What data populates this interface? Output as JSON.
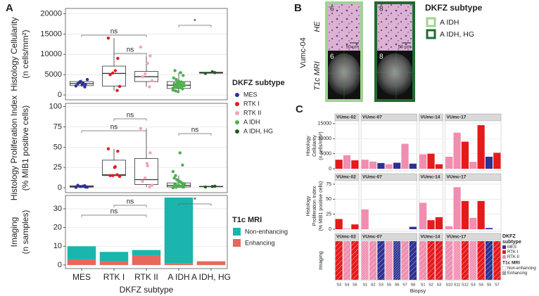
{
  "panels": [
    "A",
    "B",
    "C"
  ],
  "panel_b": {
    "patient": "Vumc-04",
    "rows": [
      "HE",
      "T1c MRI"
    ],
    "biopsies": [
      "6",
      "8"
    ],
    "scale_bar": "50 µm",
    "legend": {
      "title": "DKFZ subtype",
      "entries": [
        "A IDH",
        "A IDH, HG"
      ],
      "colors": [
        "#9fd48f",
        "#1f6b2f"
      ]
    }
  },
  "chart_data": [
    {
      "type": "box",
      "ylabel": [
        "Histology Cellularity",
        "(n cells/mm²)"
      ],
      "categories": [
        "MES",
        "RTK I",
        "RTK II",
        "A IDH",
        "A IDH, HG"
      ],
      "colors": [
        "#2e3192",
        "#e41a1c",
        "#f5a3b8",
        "#4caf50",
        "#1b5e20"
      ],
      "ylim": [
        -1200,
        21300
      ],
      "yticks": [
        0,
        5000,
        10000,
        15000,
        20000
      ],
      "grid": true,
      "boxes": [
        {
          "whislo": 2000,
          "q1": 2300,
          "med": 2800,
          "q3": 3300,
          "whishi": 3800
        },
        {
          "whislo": 1100,
          "q1": 2200,
          "med": 5300,
          "q3": 7100,
          "whishi": 14000
        },
        {
          "whislo": 2000,
          "q1": 3300,
          "med": 4500,
          "q3": 5800,
          "whishi": 9600
        },
        {
          "whislo": 800,
          "q1": 1600,
          "med": 2400,
          "q3": 3300,
          "whishi": 5500
        },
        {
          "whislo": 5300,
          "q1": 5350,
          "med": 5500,
          "q3": 5600,
          "whishi": 5700
        }
      ],
      "points": [
        [
          2200,
          2600,
          3000,
          3300,
          2800,
          3800,
          2000,
          2500,
          3200
        ],
        [
          14000,
          9000,
          6000,
          5400,
          5000,
          2100,
          1100
        ],
        [
          11800,
          9600,
          7800,
          5200,
          4500,
          3500,
          2000
        ],
        [
          1200,
          1500,
          1800,
          2000,
          2100,
          2300,
          2400,
          2500,
          2600,
          2800,
          3000,
          3200,
          3400,
          3800,
          4200,
          4800,
          5500,
          800,
          1000,
          1700,
          2200,
          2700,
          3100,
          6000
        ],
        [
          5300,
          5500,
          5700
        ]
      ],
      "brackets": [
        {
          "label": "ns",
          "between": [
            "MES",
            "RTK II"
          ]
        },
        {
          "label": "ns",
          "between": [
            "RTK I",
            "RTK II"
          ]
        },
        {
          "label": "*",
          "between": [
            "A IDH",
            "A IDH, HG"
          ]
        }
      ],
      "legend_title": "DKFZ subtype"
    },
    {
      "type": "box",
      "ylabel": [
        "Histology Proliferation Index",
        "(% MIB1 positive cells)"
      ],
      "categories": [
        "MES",
        "RTK I",
        "RTK II",
        "A IDH",
        "A IDH, HG"
      ],
      "colors": [
        "#2e3192",
        "#e41a1c",
        "#f5a3b8",
        "#4caf50",
        "#1b5e20"
      ],
      "ylim": [
        -6,
        104
      ],
      "yticks": [
        0,
        25,
        50,
        75,
        100
      ],
      "grid": true,
      "boxes": [
        {
          "whislo": 0,
          "q1": 0.8,
          "med": 1.5,
          "q3": 2.5,
          "whishi": 3
        },
        {
          "whislo": 14,
          "q1": 15,
          "med": 16,
          "q3": 34,
          "whishi": 48
        },
        {
          "whislo": 1,
          "q1": 4,
          "med": 10,
          "q3": 36,
          "whishi": 73
        },
        {
          "whislo": 0,
          "q1": 1,
          "med": 3,
          "q3": 6,
          "whishi": 15
        },
        {
          "whislo": 1,
          "q1": 1.2,
          "med": 1.5,
          "q3": 1.8,
          "whishi": 2
        }
      ],
      "points": [
        [
          0.5,
          1,
          2,
          1.5,
          3,
          0.8,
          2.5
        ],
        [
          48,
          45,
          26,
          15,
          15,
          14,
          16,
          25
        ],
        [
          73,
          43,
          27,
          12,
          8,
          3,
          1,
          30
        ],
        [
          0,
          1,
          2,
          3,
          4,
          5,
          6,
          8,
          10,
          12,
          1,
          2,
          3,
          0.5,
          2,
          4,
          7,
          9,
          15,
          20,
          28,
          43
        ],
        [
          1,
          2,
          1.5
        ]
      ],
      "brackets": [
        {
          "label": "ns",
          "between": [
            "MES",
            "RTK II"
          ]
        },
        {
          "label": "ns",
          "between": [
            "RTK I",
            "RTK II"
          ]
        },
        {
          "label": "ns",
          "between": [
            "A IDH",
            "A IDH, HG"
          ]
        }
      ]
    },
    {
      "type": "stacked_bar",
      "ylabel": [
        "Imaging",
        "(n samples)"
      ],
      "xlabel": "DKFZ subtype",
      "categories": [
        "MES",
        "RTK I",
        "RTK II",
        "A IDH",
        "A IDH, HG"
      ],
      "ylim": [
        -1.9,
        37.1
      ],
      "yticks": [
        0,
        10,
        20,
        30
      ],
      "grid": true,
      "series": [
        {
          "name": "Non-enhancing",
          "color": "#1ab5ac",
          "values": [
            7,
            5,
            3,
            35,
            0
          ]
        },
        {
          "name": "Enhancing",
          "color": "#e8675d",
          "values": [
            3,
            2,
            5,
            1,
            2
          ]
        }
      ],
      "brackets": [
        {
          "label": "ns",
          "between": [
            "MES",
            "RTK II"
          ]
        },
        {
          "label": "ns",
          "between": [
            "RTK I",
            "RTK II"
          ]
        },
        {
          "label": "*",
          "between": [
            "A IDH",
            "A IDH, HG"
          ]
        }
      ],
      "legend_title": "T1c MRI"
    },
    {
      "type": "facet_bar",
      "ylabel": [
        "Histology",
        "Cellularity",
        "(n cells/mm²)"
      ],
      "ylim": [
        -700,
        15900
      ],
      "yticks": [
        0,
        5000,
        10000,
        15000
      ],
      "grid": true,
      "facets": [
        {
          "name": "VUmc-02",
          "subtypes": [
            "RTK I",
            "RTK II",
            "RTK I"
          ],
          "values": [
            3000,
            4500,
            2800
          ]
        },
        {
          "name": "VUmc-07",
          "subtypes": [
            "RTK II",
            "RTK II",
            "MES",
            "RTK II",
            "MES",
            "RTK II",
            "MES"
          ],
          "values": [
            3000,
            2400,
            1900,
            1500,
            2000,
            8300,
            1700
          ]
        },
        {
          "name": "VUmc-14",
          "subtypes": [
            "RTK II",
            "RTK I",
            "RTK I"
          ],
          "values": [
            4800,
            5000,
            1500
          ]
        },
        {
          "name": "VUmc-17",
          "subtypes": [
            "RTK II",
            "RTK II",
            "RTK I",
            "RTK II",
            "RTK I",
            "MES",
            "RTK I"
          ],
          "values": [
            4000,
            12000,
            9000,
            2300,
            14500,
            4000,
            5300
          ]
        }
      ]
    },
    {
      "type": "facet_bar",
      "ylabel": [
        "Histology",
        "Proliferation Index",
        "(% MIB1 positive cells)"
      ],
      "ylim": [
        -3.5,
        80.8
      ],
      "yticks": [
        0,
        25,
        50,
        75
      ],
      "grid": true,
      "facets": [
        {
          "name": "VUmc-02",
          "subtypes": [
            "RTK I",
            "RTK II",
            "RTK I"
          ],
          "values": [
            17,
            1,
            8
          ]
        },
        {
          "name": "VUmc-07",
          "subtypes": [
            "RTK II",
            "RTK II",
            "MES",
            "RTK II",
            "MES",
            "RTK II",
            "MES"
          ],
          "values": [
            33,
            0,
            0,
            0,
            0,
            0,
            4
          ]
        },
        {
          "name": "VUmc-14",
          "subtypes": [
            "RTK II",
            "RTK I",
            "RTK I"
          ],
          "values": [
            44,
            15,
            20
          ]
        },
        {
          "name": "VUmc-17",
          "subtypes": [
            "RTK II",
            "RTK II",
            "RTK I",
            "RTK II",
            "RTK I",
            "MES",
            "RTK I"
          ],
          "values": [
            5,
            70,
            47,
            19,
            47,
            2,
            0
          ]
        }
      ]
    },
    {
      "type": "facet_tile",
      "ylabel": [
        "Imaging"
      ],
      "xlabel": "Biopsy",
      "facets": [
        {
          "name": "VUmc-02",
          "categories": [
            "S3",
            "S4",
            "S5"
          ],
          "subtypes": [
            "RTK I",
            "RTK II",
            "RTK I"
          ],
          "t1c": [
            "Non-enhancing",
            "Non-enhancing",
            "Non-enhancing"
          ]
        },
        {
          "name": "VUmc-07",
          "categories": [
            "S1",
            "S2",
            "S3",
            "S5",
            "S6",
            "S7",
            "S8"
          ],
          "subtypes": [
            "RTK II",
            "RTK II",
            "MES",
            "RTK II",
            "MES",
            "RTK II",
            "MES"
          ],
          "t1c": [
            "Enhancing",
            "Non-enhancing",
            "Non-enhancing",
            "Enhancing",
            "Enhancing",
            "Non-enhancing",
            "Non-enhancing"
          ]
        },
        {
          "name": "VUmc-14",
          "categories": [
            "S1",
            "S2",
            "S3"
          ],
          "subtypes": [
            "RTK II",
            "RTK I",
            "RTK I"
          ],
          "t1c": [
            "Non-enhancing",
            "Non-enhancing",
            "Non-enhancing"
          ]
        },
        {
          "name": "VUmc-17",
          "categories": [
            "S10",
            "S11",
            "S12",
            "S3",
            "S4",
            "S5",
            "S7"
          ],
          "subtypes": [
            "RTK II",
            "RTK II",
            "RTK I",
            "RTK II",
            "RTK I",
            "MES",
            "RTK I"
          ],
          "t1c": [
            "Non-enhancing",
            "Enhancing",
            "Non-enhancing",
            "Enhancing",
            "Non-enhancing",
            "Non-enhancing",
            "Non-enhancing"
          ]
        }
      ],
      "legend": {
        "title": [
          "DKFZ",
          "subtype"
        ],
        "entries": [
          "MES",
          "RTK I",
          "RTK II"
        ],
        "colors": [
          "#2e3192",
          "#e41a1c",
          "#f08db0"
        ]
      },
      "t1c_legend": {
        "title": "T1c MRI",
        "entries": [
          "Non-enhancing",
          "Enhancing"
        ]
      }
    }
  ]
}
